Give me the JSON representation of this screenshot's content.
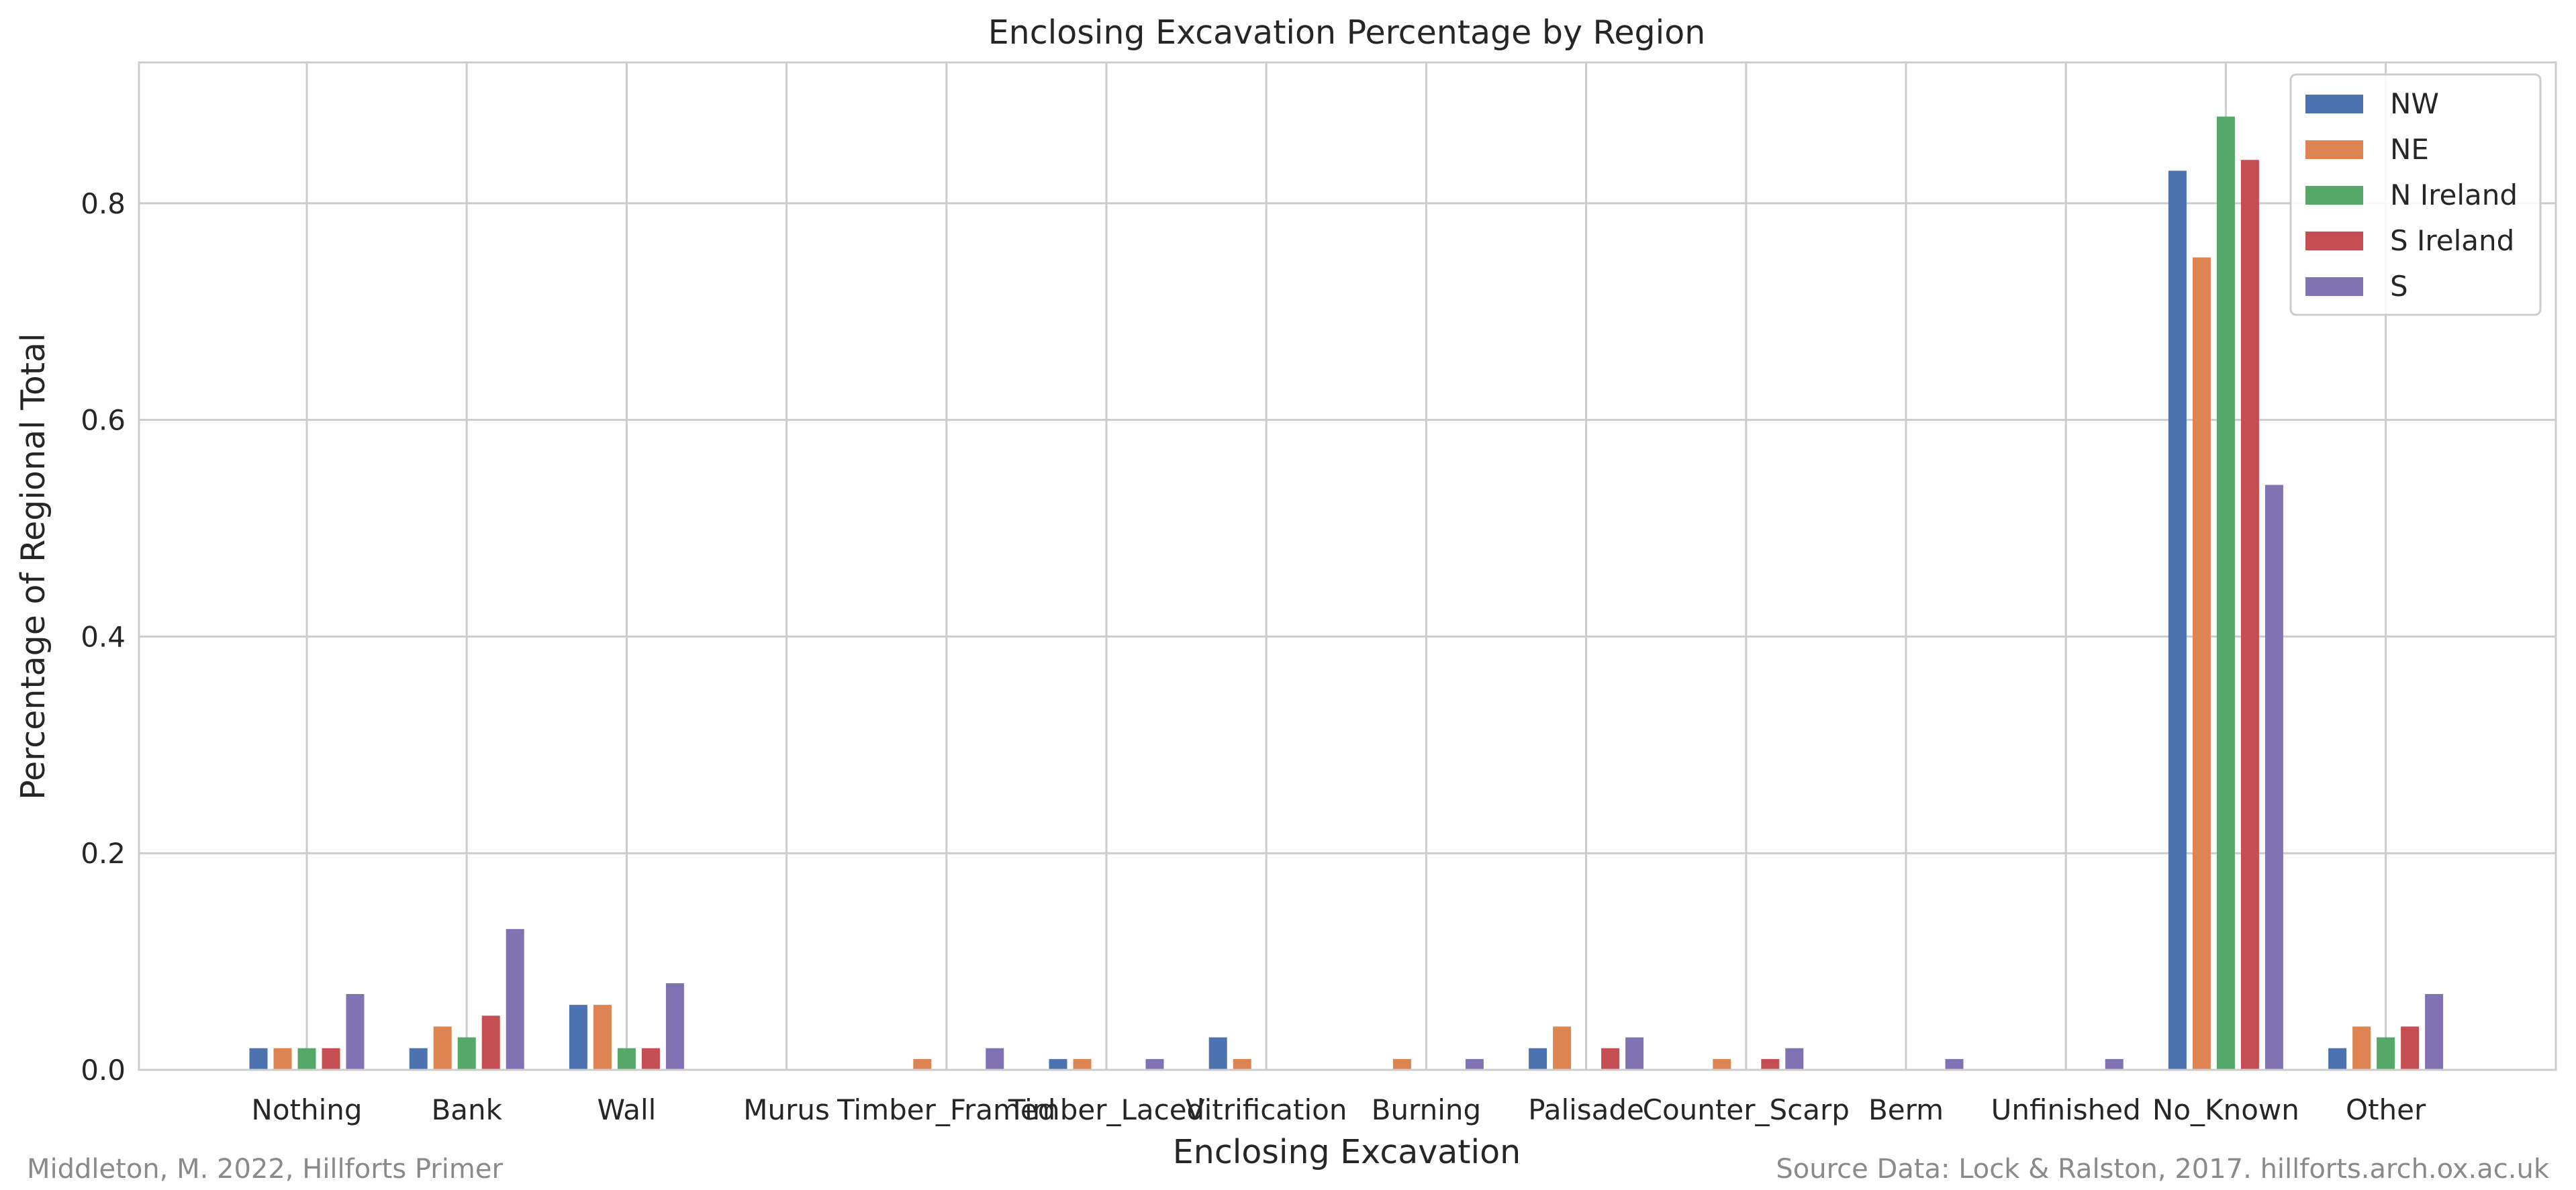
{
  "chart_data": {
    "type": "bar",
    "title": "Enclosing Excavation Percentage by Region",
    "xlabel": "Enclosing Excavation",
    "ylabel": "Percentage of Regional Total",
    "ylim": [
      0,
      0.93
    ],
    "yticks": [
      0.0,
      0.2,
      0.4,
      0.6,
      0.8
    ],
    "ytick_labels": [
      "0.0",
      "0.2",
      "0.4",
      "0.6",
      "0.8"
    ],
    "grid": true,
    "legend_position": "top-right",
    "categories": [
      "Nothing",
      "Bank",
      "Wall",
      "Murus",
      "Timber_Framed",
      "Timber_Laced",
      "Vitrification",
      "Burning",
      "Palisade",
      "Counter_Scarp",
      "Berm",
      "Unfinished",
      "No_Known",
      "Other"
    ],
    "series": [
      {
        "name": "NW",
        "color": "#4c72b0",
        "values": [
          0.02,
          0.02,
          0.06,
          0.0,
          0.0,
          0.01,
          0.03,
          0.0,
          0.02,
          0.0,
          0.0,
          0.0,
          0.83,
          0.02
        ]
      },
      {
        "name": "NE",
        "color": "#dd8452",
        "values": [
          0.02,
          0.04,
          0.06,
          0.0,
          0.01,
          0.01,
          0.01,
          0.01,
          0.04,
          0.01,
          0.0,
          0.0,
          0.75,
          0.04
        ]
      },
      {
        "name": "N Ireland",
        "color": "#55a868",
        "values": [
          0.02,
          0.03,
          0.02,
          0.0,
          0.0,
          0.0,
          0.0,
          0.0,
          0.0,
          0.0,
          0.0,
          0.0,
          0.88,
          0.03
        ]
      },
      {
        "name": "S Ireland",
        "color": "#c44e52",
        "values": [
          0.02,
          0.05,
          0.02,
          0.0,
          0.0,
          0.0,
          0.0,
          0.0,
          0.02,
          0.01,
          0.0,
          0.0,
          0.84,
          0.04
        ]
      },
      {
        "name": "S",
        "color": "#8172b3",
        "values": [
          0.07,
          0.13,
          0.08,
          0.0,
          0.02,
          0.01,
          0.0,
          0.01,
          0.03,
          0.02,
          0.01,
          0.01,
          0.54,
          0.07
        ]
      }
    ]
  },
  "footer": {
    "left": "Middleton, M. 2022, Hillforts Primer",
    "right": "Source Data: Lock & Ralston, 2017. hillforts.arch.ox.ac.uk"
  }
}
